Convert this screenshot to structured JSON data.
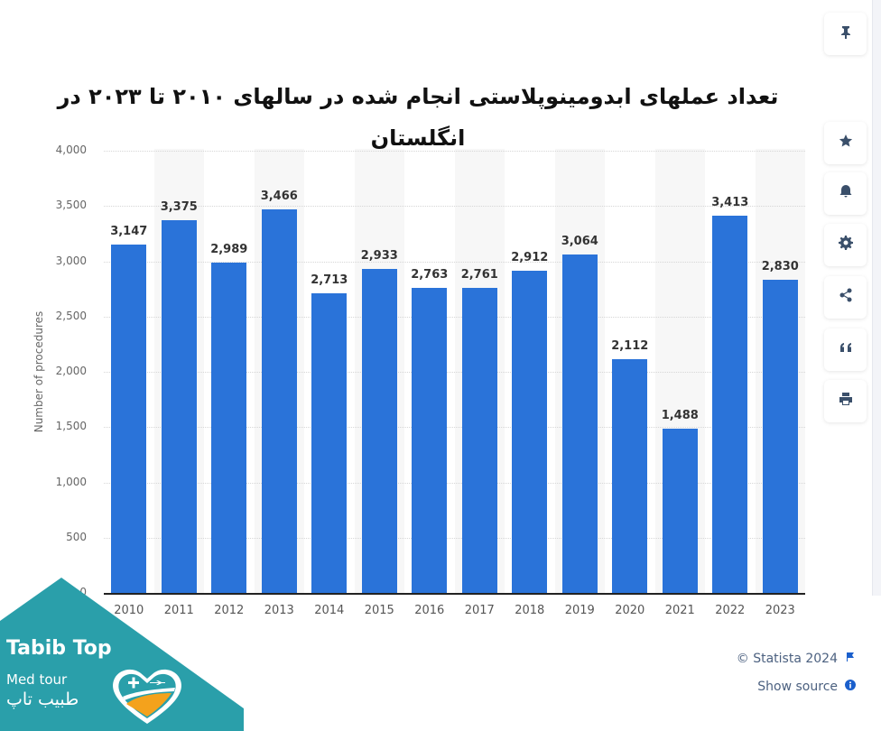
{
  "title": "تعداد عملهای ابدومینوپلاستی انجام شده در سالهای ۲۰۱۰ تا ۲۰۲۳ در انگلستان",
  "chart_data": {
    "type": "bar",
    "title": "تعداد عملهای ابدومینوپلاستی انجام شده در سالهای ۲۰۱۰ تا ۲۰۲۳ در انگلستان",
    "xlabel": "",
    "ylabel": "Number of procedures",
    "categories": [
      "2010",
      "2011",
      "2012",
      "2013",
      "2014",
      "2015",
      "2016",
      "2017",
      "2018",
      "2019",
      "2020",
      "2021",
      "2022",
      "2023"
    ],
    "values": [
      3147,
      3375,
      2989,
      3466,
      2713,
      2933,
      2763,
      2761,
      2912,
      3064,
      2112,
      1488,
      3413,
      2830
    ],
    "value_labels": [
      "3,147",
      "3,375",
      "2,989",
      "3,466",
      "2,713",
      "2,933",
      "2,763",
      "2,761",
      "2,912",
      "3,064",
      "2,112",
      "1,488",
      "3,413",
      "2,830"
    ],
    "ylim": [
      0,
      4000
    ],
    "yticks": [
      "0",
      "500",
      "1,000",
      "1,500",
      "2,000",
      "2,500",
      "3,000",
      "3,500",
      "4,000"
    ],
    "grid": true,
    "legend": null,
    "bar_color": "#2a73d9"
  },
  "sidebar": {
    "buttons": [
      {
        "icon": "pin-icon"
      },
      {
        "icon": "star-icon"
      },
      {
        "icon": "bell-icon"
      },
      {
        "icon": "gear-icon"
      },
      {
        "icon": "share-icon"
      },
      {
        "icon": "quote-icon"
      },
      {
        "icon": "print-icon"
      }
    ]
  },
  "credits": {
    "copyright": "© Statista 2024",
    "show_source": "Show source"
  },
  "watermark": {
    "brand": "Tabib Top",
    "tagline": "Med tour",
    "brand_fa": "طبیب تاپ",
    "color": "#2a9faa"
  }
}
